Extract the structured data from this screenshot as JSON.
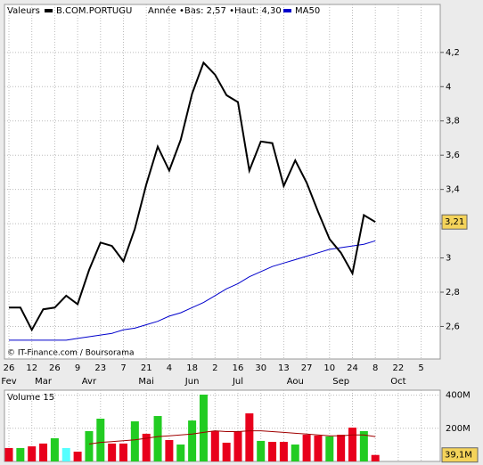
{
  "chart_data": {
    "type": "line",
    "legend_label": "Valeurs",
    "info": "Année •Bas: 2,57 •Haut: 4,30",
    "source": "© IT-Finance.com / Boursorama",
    "categories": [
      "26",
      null,
      "12",
      null,
      "26",
      null,
      "9",
      null,
      "23",
      null,
      "7",
      null,
      "21",
      null,
      "4",
      null,
      "18",
      null,
      "2",
      null,
      "16",
      null,
      "30",
      null,
      "13",
      null,
      "27",
      null,
      "10",
      null,
      "24",
      null,
      "8",
      null,
      "22",
      null,
      "5"
    ],
    "months": [
      "Fev",
      "Mar",
      "Avr",
      "Mai",
      "Jun",
      "Jul",
      "Aou",
      "Sep",
      "Oct"
    ],
    "month_category": [
      0,
      3,
      7,
      12,
      16,
      20,
      25,
      29,
      34
    ],
    "series": [
      {
        "name": "B.COM.PORTUGU",
        "color": "#000000",
        "values": [
          2.71,
          2.71,
          2.58,
          2.7,
          2.71,
          2.78,
          2.73,
          2.93,
          3.09,
          3.07,
          2.98,
          3.17,
          3.43,
          3.65,
          3.51,
          3.69,
          3.96,
          4.14,
          4.07,
          3.95,
          3.91,
          3.51,
          3.68,
          3.67,
          3.42,
          3.57,
          3.44,
          3.27,
          3.11,
          3.03,
          2.91,
          3.25,
          3.21,
          null,
          null,
          null,
          null
        ]
      },
      {
        "name": "MA50",
        "color": "#0000cc",
        "values": [
          2.52,
          2.52,
          2.52,
          2.52,
          2.52,
          2.52,
          2.53,
          2.54,
          2.55,
          2.56,
          2.58,
          2.59,
          2.61,
          2.63,
          2.66,
          2.68,
          2.71,
          2.74,
          2.78,
          2.82,
          2.85,
          2.89,
          2.92,
          2.95,
          2.97,
          2.99,
          3.01,
          3.03,
          3.05,
          3.06,
          3.07,
          3.08,
          3.1,
          null,
          null,
          null,
          null
        ]
      }
    ],
    "ylim": [
      2.41,
      4.48
    ],
    "yticks": [
      {
        "value": 2.6,
        "label": "2,6"
      },
      {
        "value": 2.8,
        "label": "2,8"
      },
      3,
      {
        "value": 3.2,
        "label": "3,2"
      },
      {
        "value": 3.4,
        "label": "3,4"
      },
      {
        "value": 3.6,
        "label": "3,6"
      },
      {
        "value": 3.8,
        "label": "3,8"
      },
      4,
      {
        "value": 4.2,
        "label": "4,2"
      }
    ],
    "last_price": {
      "value": 3.21,
      "label": "3,21"
    },
    "grid": true,
    "volume": {
      "title": "Volume 15",
      "values": [
        81000000,
        81000000,
        91000000,
        108000000,
        140000000,
        81000000,
        59000000,
        183000000,
        258000000,
        108000000,
        108000000,
        242000000,
        167000000,
        274000000,
        129000000,
        102000000,
        247000000,
        403000000,
        183000000,
        113000000,
        183000000,
        290000000,
        124000000,
        118000000,
        118000000,
        102000000,
        161000000,
        156000000,
        151000000,
        161000000,
        204000000,
        183000000,
        39100000,
        null,
        null,
        null,
        null
      ],
      "colors": [
        "#e8001c",
        "#22cc22",
        "#e8001c",
        "#e8001c",
        "#22cc22",
        "#55ffff",
        "#e8001c",
        "#22cc22",
        "#22cc22",
        "#e8001c",
        "#e8001c",
        "#22cc22",
        "#e8001c",
        "#22cc22",
        "#e8001c",
        "#22cc22",
        "#22cc22",
        "#22cc22",
        "#e8001c",
        "#e8001c",
        "#e8001c",
        "#e8001c",
        "#22cc22",
        "#e8001c",
        "#e8001c",
        "#22cc22",
        "#e8001c",
        "#e8001c",
        "#22cc22",
        "#e8001c",
        "#e8001c",
        "#22cc22",
        "#e8001c",
        null,
        null,
        null,
        null
      ],
      "average": [
        null,
        null,
        null,
        null,
        null,
        null,
        null,
        105000000,
        115000000,
        120000000,
        125000000,
        130000000,
        140000000,
        150000000,
        155000000,
        160000000,
        165000000,
        175000000,
        185000000,
        180000000,
        180000000,
        185000000,
        185000000,
        180000000,
        175000000,
        170000000,
        165000000,
        160000000,
        155000000,
        155000000,
        160000000,
        160000000,
        150000000,
        null,
        null,
        null,
        null
      ],
      "average_color": "#a00000",
      "ylim": [
        0,
        430000000
      ],
      "yticks": [
        {
          "value": 200000000,
          "label": "200M"
        },
        {
          "value": 400000000,
          "label": "400M"
        }
      ],
      "last": {
        "value": 39100000,
        "label": "39,1M"
      }
    }
  }
}
